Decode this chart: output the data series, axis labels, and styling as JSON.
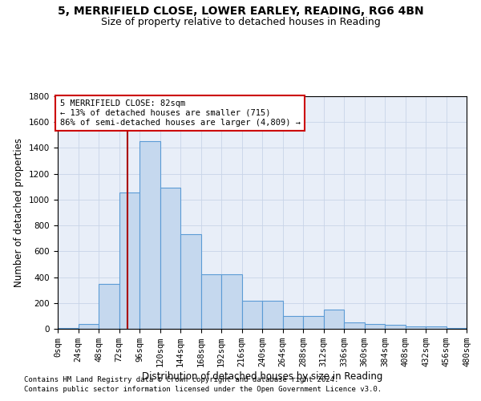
{
  "title_line1": "5, MERRIFIELD CLOSE, LOWER EARLEY, READING, RG6 4BN",
  "title_line2": "Size of property relative to detached houses in Reading",
  "xlabel": "Distribution of detached houses by size in Reading",
  "ylabel": "Number of detached properties",
  "footnote1": "Contains HM Land Registry data © Crown copyright and database right 2024.",
  "footnote2": "Contains public sector information licensed under the Open Government Licence v3.0.",
  "annotation_line1": "5 MERRIFIELD CLOSE: 82sqm",
  "annotation_line2": "← 13% of detached houses are smaller (715)",
  "annotation_line3": "86% of semi-detached houses are larger (4,809) →",
  "property_size": 82,
  "bar_left_edges": [
    0,
    24,
    48,
    72,
    96,
    120,
    144,
    168,
    192,
    216,
    240,
    264,
    288,
    312,
    336,
    360,
    384,
    408,
    432,
    456
  ],
  "bar_heights": [
    8,
    35,
    350,
    1055,
    1450,
    1090,
    730,
    425,
    425,
    215,
    215,
    100,
    100,
    150,
    50,
    40,
    30,
    20,
    20,
    5
  ],
  "bin_width": 24,
  "bar_color": "#c5d8ee",
  "bar_edgecolor": "#5b9bd5",
  "vline_color": "#aa0000",
  "annotation_box_edgecolor": "#cc0000",
  "annotation_box_facecolor": "#ffffff",
  "grid_color": "#c8d4e8",
  "bg_color": "#e8eef8",
  "ylim": [
    0,
    1800
  ],
  "xlim": [
    0,
    480
  ],
  "title_fontsize": 10,
  "subtitle_fontsize": 9,
  "tick_label_fontsize": 7.5,
  "axis_label_fontsize": 8.5,
  "annotation_fontsize": 7.5,
  "footnote_fontsize": 6.5
}
